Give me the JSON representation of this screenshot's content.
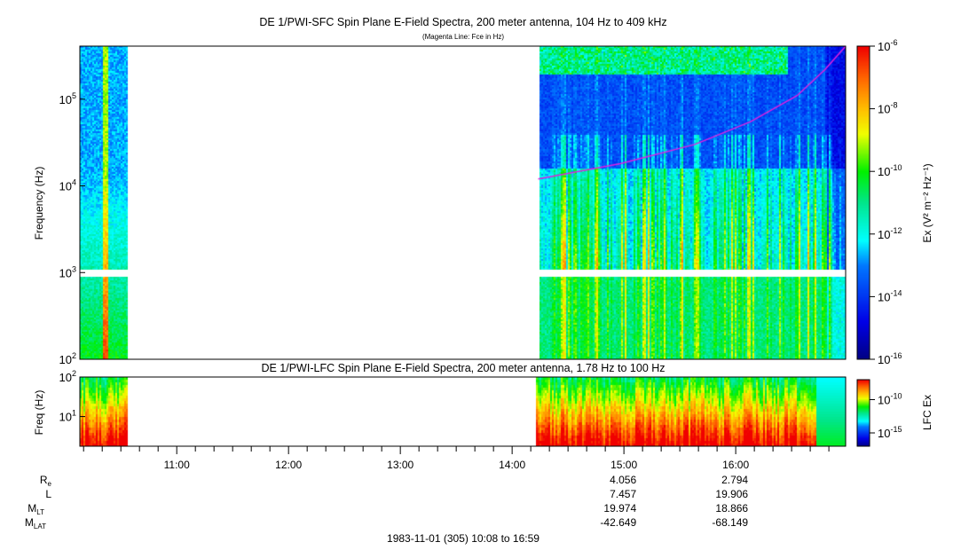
{
  "chart_data": {
    "type": "heatmap",
    "panels": [
      {
        "title": "DE 1/PWI-SFC  Spin Plane E-Field Spectra, 200 meter antenna, 104 Hz to 409 kHz",
        "subtitle": "(Magenta Line: Fce in Hz)",
        "ylabel": "Frequency (Hz)",
        "yscale": "log",
        "ylim": [
          100,
          409000
        ],
        "yticks": [
          {
            "v": 100,
            "b": "10",
            "e": "2"
          },
          {
            "v": 1000,
            "b": "10",
            "e": "3"
          },
          {
            "v": 10000,
            "b": "10",
            "e": "4"
          },
          {
            "v": 100000,
            "b": "10",
            "e": "5"
          }
        ],
        "colorbar": {
          "label": "Ex (V² m⁻² Hz⁻¹)",
          "clim_log10": [
            -16,
            -6
          ],
          "ticks": [
            {
              "v": -6,
              "t": "10",
              "e": "-6"
            },
            {
              "v": -8,
              "t": "10",
              "e": "-8"
            },
            {
              "v": -10,
              "t": "10",
              "e": "-10"
            },
            {
              "v": -12,
              "t": "10",
              "e": "-12"
            },
            {
              "v": -14,
              "t": "10",
              "e": "-14"
            },
            {
              "v": -16,
              "t": "10",
              "e": "-16"
            }
          ]
        },
        "data_intervals_min": [
          [
            0,
            25
          ],
          [
            246,
            411
          ]
        ],
        "gap_band_hz": [
          900,
          1100
        ],
        "fce_line": {
          "color": "#e020e0",
          "t_min": [
            246,
            290,
            330,
            360,
            385,
            400,
            411
          ],
          "f_hz": [
            12000,
            18000,
            30000,
            55000,
            110000,
            220000,
            409000
          ]
        }
      },
      {
        "title": "DE 1/PWI-LFC  Spin Plane E-Field Spectra, 200 meter antenna, 1.78 Hz to 100 Hz",
        "ylabel": "Freq (Hz)",
        "yscale": "log",
        "ylim": [
          1.78,
          100
        ],
        "yticks": [
          {
            "v": 100,
            "b": "10",
            "e": "2"
          },
          {
            "v": 10,
            "b": "10",
            "e": "1"
          }
        ],
        "colorbar": {
          "label": "LFC Ex",
          "clim_log10": [
            -17,
            -7
          ],
          "ticks": [
            {
              "v": -10,
              "t": "10",
              "e": "-10"
            },
            {
              "v": -15,
              "t": "10",
              "e": "-15"
            }
          ]
        },
        "data_intervals_min": [
          [
            0,
            25
          ],
          [
            244,
            411
          ]
        ]
      }
    ],
    "xaxis": {
      "start": "10:08",
      "end": "16:59",
      "span_min": 411,
      "ticks": [
        {
          "m": 52,
          "t": "11:00"
        },
        {
          "m": 112,
          "t": "12:00"
        },
        {
          "m": 172,
          "t": "13:00"
        },
        {
          "m": 232,
          "t": "14:00"
        },
        {
          "m": 292,
          "t": "15:00"
        },
        {
          "m": 352,
          "t": "16:00"
        }
      ],
      "caption": "1983-11-01 (305) 10:08 to 16:59"
    },
    "ephemeris": {
      "rows": [
        {
          "label": "R",
          "sub": "e",
          "values": [
            "",
            "",
            "",
            "",
            "4.056",
            "2.794"
          ]
        },
        {
          "label": "L",
          "sub": "",
          "values": [
            "",
            "",
            "",
            "",
            "7.457",
            "19.906"
          ]
        },
        {
          "label": "M",
          "sub": "LT",
          "values": [
            "",
            "",
            "",
            "",
            "19.974",
            "18.866"
          ]
        },
        {
          "label": "M",
          "sub": "LAT",
          "values": [
            "",
            "",
            "",
            "",
            "-42.649",
            "-68.149"
          ]
        }
      ]
    }
  }
}
